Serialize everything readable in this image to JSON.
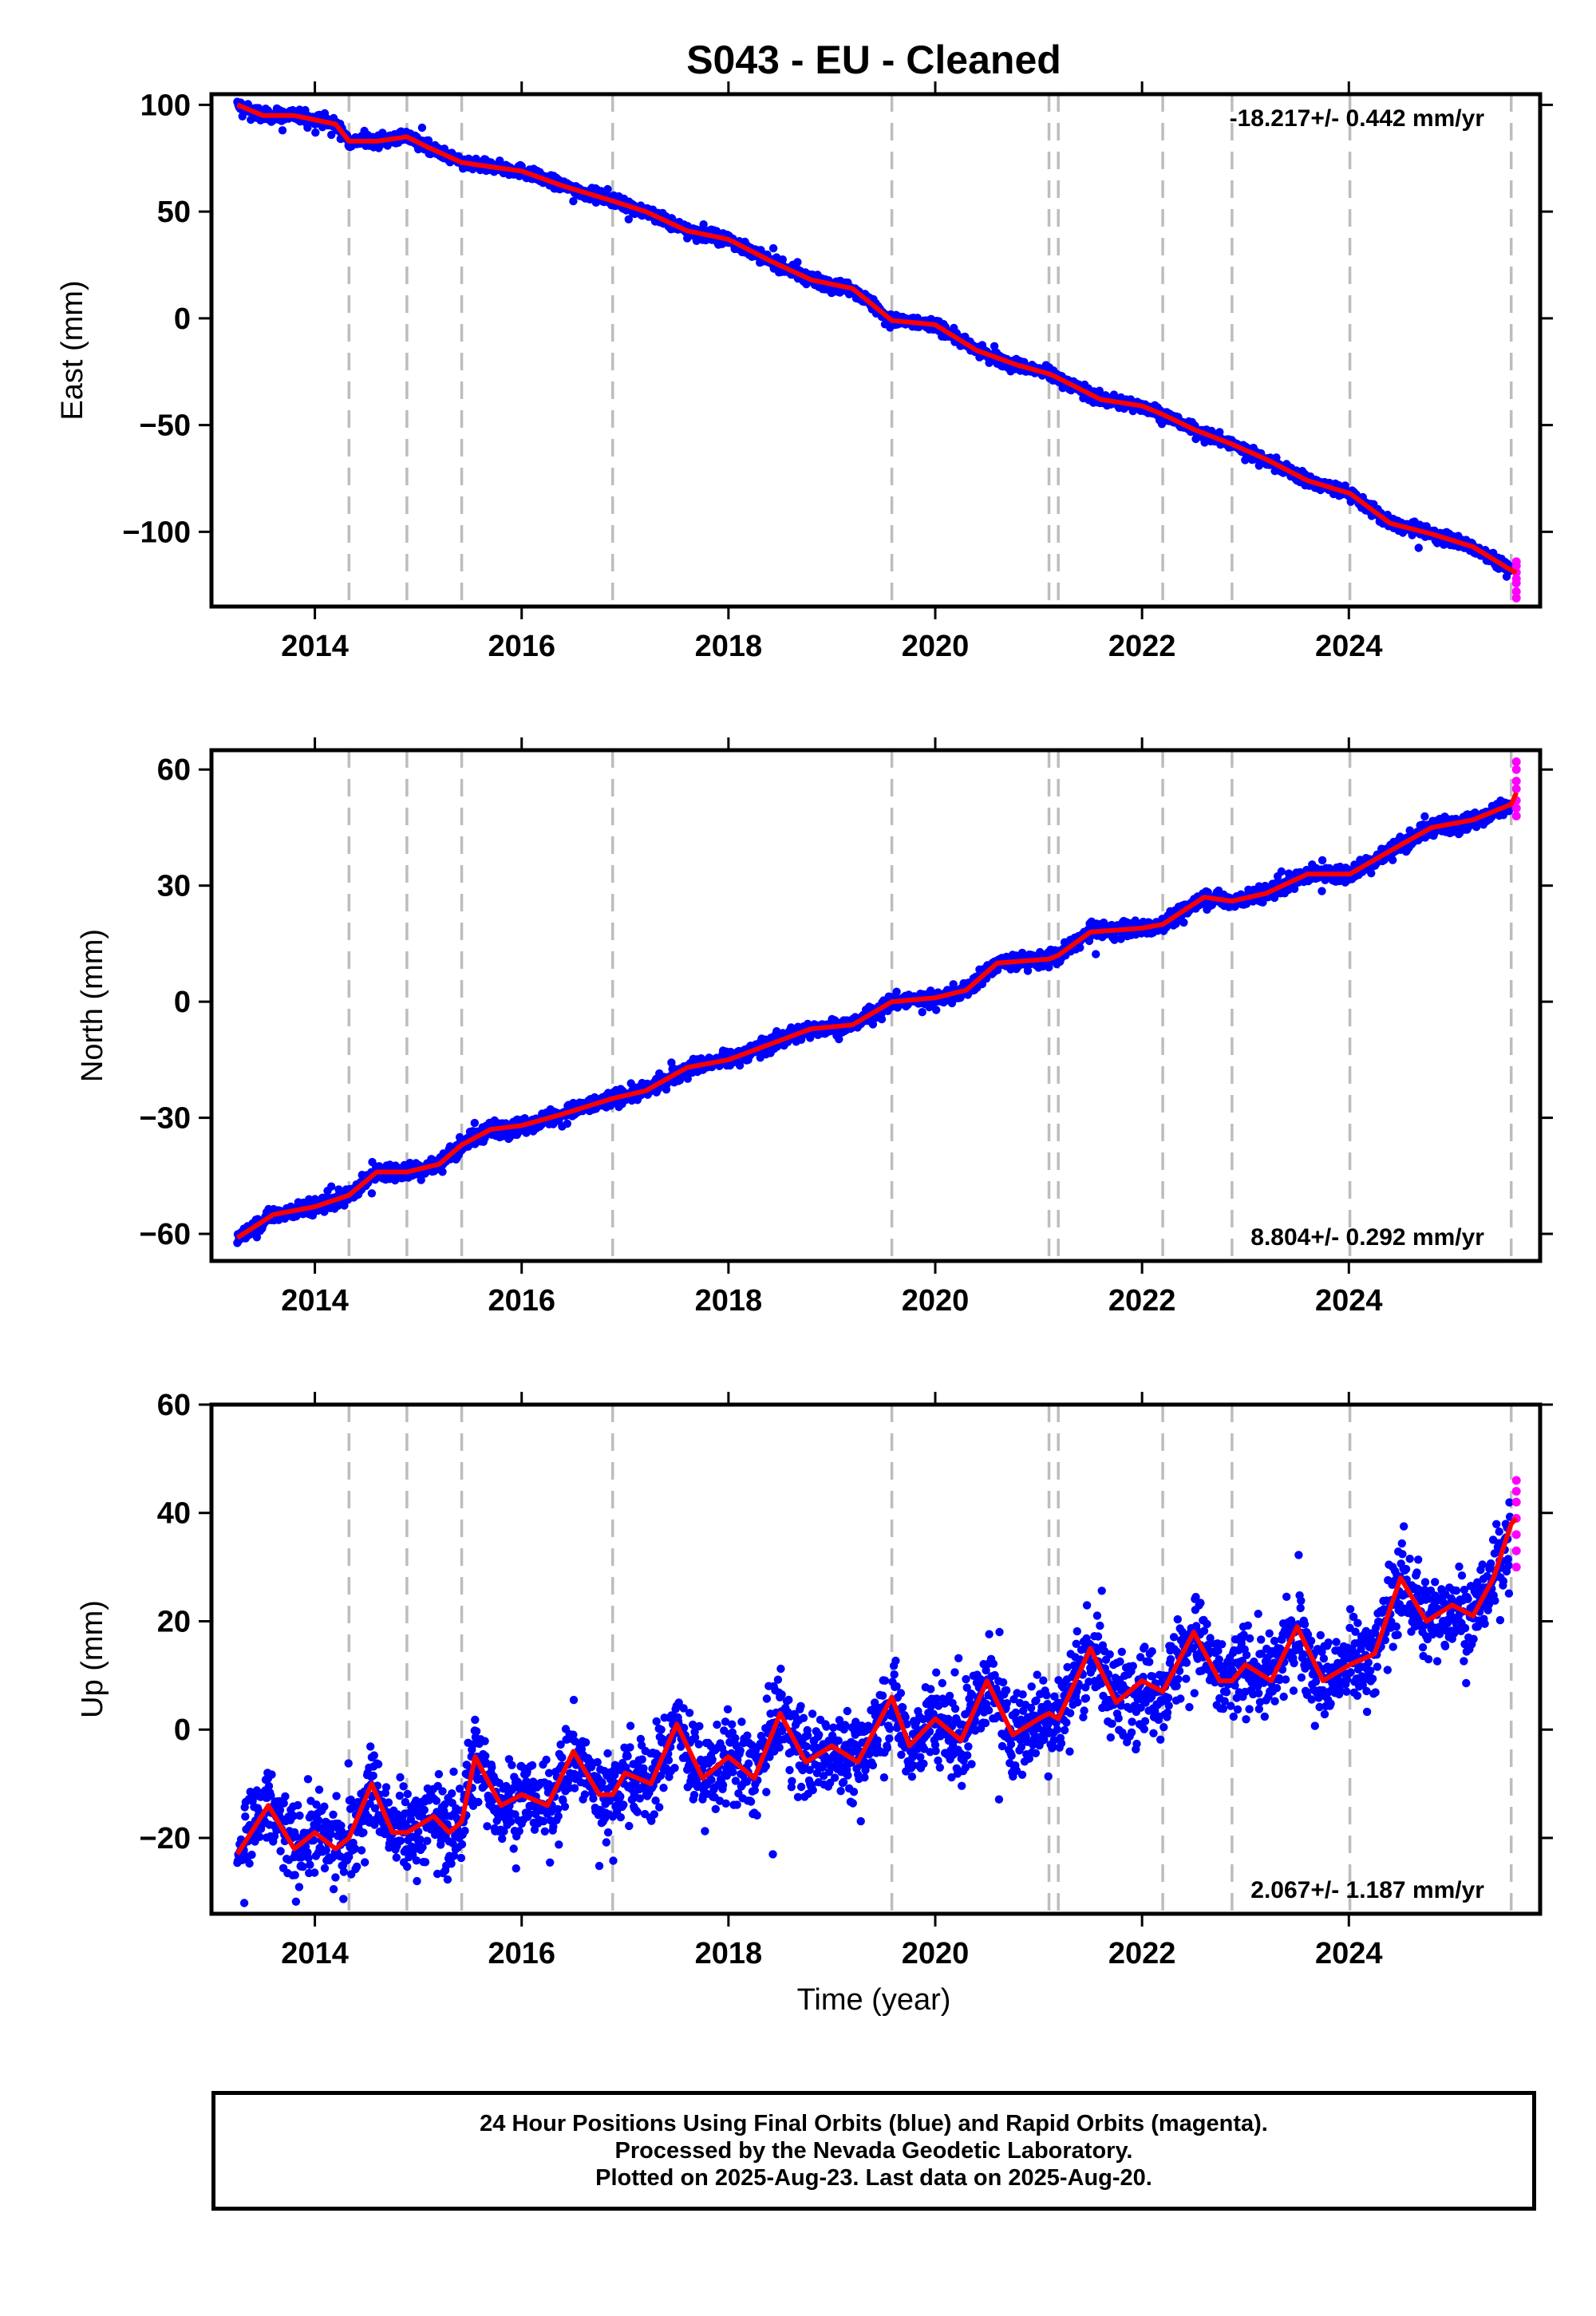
{
  "figure": {
    "title": "S043  - EU - Cleaned",
    "footer": {
      "line1": "24 Hour Positions Using Final Orbits (blue) and Rapid Orbits (magenta).",
      "line2": "Processed by the Nevada Geodetic Laboratory.",
      "line3": "Plotted on 2025-Aug-23. Last data on 2025-Aug-20."
    },
    "colors": {
      "final_points": "#0000ff",
      "rapid_points": "#ff00ff",
      "model_line": "#ff0000",
      "event_lines": "#bdbdbd",
      "axes": "#000000"
    }
  },
  "chart_data": [
    {
      "type": "scatter",
      "panel": "east",
      "ylabel": "East (mm)",
      "xlabel": "",
      "xlim": [
        2013.0,
        2025.85
      ],
      "ylim": [
        -135,
        105
      ],
      "x_ticks": [
        2014,
        2016,
        2018,
        2020,
        2022,
        2024
      ],
      "y_ticks": [
        100,
        50,
        0,
        -50,
        -100
      ],
      "y_tick_labels": [
        "100",
        "50",
        "0",
        "−50",
        "−100"
      ],
      "annotation": "-18.217+/- 0.442 mm/yr",
      "annotation_position": "top-right",
      "event_lines": [
        2014.33,
        2014.89,
        2015.42,
        2016.88,
        2019.58,
        2021.1,
        2021.19,
        2022.2,
        2022.87,
        2024.01,
        2025.57
      ],
      "model": {
        "x": [
          2013.25,
          2013.5,
          2013.8,
          2014.2,
          2014.33,
          2014.6,
          2014.89,
          2015.1,
          2015.42,
          2015.7,
          2016.0,
          2016.4,
          2016.88,
          2017.2,
          2017.6,
          2018.0,
          2018.4,
          2018.8,
          2019.2,
          2019.58,
          2020.0,
          2020.4,
          2020.8,
          2021.1,
          2021.19,
          2021.6,
          2022.0,
          2022.2,
          2022.5,
          2022.87,
          2023.2,
          2023.6,
          2024.01,
          2024.4,
          2024.8,
          2025.2,
          2025.57,
          2025.62
        ],
        "y": [
          100,
          95,
          95,
          91,
          83,
          83,
          85,
          80,
          73,
          71,
          69,
          62,
          55,
          50,
          41,
          37,
          27,
          18,
          14,
          -1,
          -3,
          -15,
          -22,
          -26,
          -28,
          -38,
          -41,
          -45,
          -52,
          -59,
          -66,
          -76,
          -82,
          -96,
          -101,
          -107,
          -118,
          -119
        ]
      },
      "noise_amplitude": 2.5,
      "rapid": {
        "x": 2025.62,
        "y_values": [
          -119,
          -116,
          -114,
          -122,
          -124,
          -128,
          -131
        ]
      }
    },
    {
      "type": "scatter",
      "panel": "north",
      "ylabel": "North (mm)",
      "xlabel": "",
      "xlim": [
        2013.0,
        2025.85
      ],
      "ylim": [
        -67,
        65
      ],
      "x_ticks": [
        2014,
        2016,
        2018,
        2020,
        2022,
        2024
      ],
      "y_ticks": [
        60,
        30,
        0,
        -30,
        -60
      ],
      "y_tick_labels": [
        "60",
        "30",
        "0",
        "−30",
        "−60"
      ],
      "annotation": "8.804+/- 0.292 mm/yr",
      "annotation_position": "bottom-right",
      "event_lines": [
        2014.33,
        2014.89,
        2015.42,
        2016.88,
        2019.58,
        2021.1,
        2021.19,
        2022.2,
        2022.87,
        2024.01,
        2025.57
      ],
      "model": {
        "x": [
          2013.25,
          2013.6,
          2014.0,
          2014.33,
          2014.6,
          2014.89,
          2015.2,
          2015.42,
          2015.7,
          2016.0,
          2016.4,
          2016.88,
          2017.2,
          2017.6,
          2018.0,
          2018.4,
          2018.8,
          2019.2,
          2019.58,
          2020.0,
          2020.3,
          2020.6,
          2021.1,
          2021.19,
          2021.5,
          2022.0,
          2022.2,
          2022.6,
          2022.87,
          2023.2,
          2023.6,
          2024.01,
          2024.4,
          2024.8,
          2025.2,
          2025.57,
          2025.62
        ],
        "y": [
          -61,
          -55,
          -53,
          -50,
          -44,
          -44,
          -42,
          -37,
          -33,
          -32,
          -29,
          -25,
          -23,
          -17,
          -15,
          -11,
          -7,
          -6,
          0,
          1,
          3,
          10,
          11,
          12,
          18,
          19,
          20,
          27,
          26,
          28,
          33,
          33,
          39,
          45,
          47,
          51,
          54
        ]
      },
      "noise_amplitude": 1.8,
      "rapid": {
        "x": 2025.62,
        "y_values": [
          48,
          50,
          52,
          55,
          57,
          60,
          62
        ]
      }
    },
    {
      "type": "scatter",
      "panel": "up",
      "ylabel": "Up (mm)",
      "xlabel": "Time (year)",
      "xlim": [
        2013.0,
        2025.85
      ],
      "ylim": [
        -34,
        60
      ],
      "x_ticks": [
        2014,
        2016,
        2018,
        2020,
        2022,
        2024
      ],
      "y_ticks": [
        60,
        40,
        20,
        0,
        -20
      ],
      "y_tick_labels": [
        "60",
        "40",
        "20",
        "0",
        "−20"
      ],
      "annotation": "2.067+/- 1.187 mm/yr",
      "annotation_position": "bottom-right",
      "event_lines": [
        2014.33,
        2014.89,
        2015.42,
        2016.88,
        2019.58,
        2021.1,
        2021.19,
        2022.2,
        2022.87,
        2024.01,
        2025.57
      ],
      "model": {
        "x": [
          2013.25,
          2013.55,
          2013.8,
          2014.0,
          2014.2,
          2014.33,
          2014.55,
          2014.75,
          2014.89,
          2015.15,
          2015.3,
          2015.42,
          2015.55,
          2015.8,
          2016.0,
          2016.25,
          2016.5,
          2016.75,
          2016.88,
          2017.0,
          2017.25,
          2017.5,
          2017.75,
          2018.0,
          2018.25,
          2018.5,
          2018.75,
          2019.0,
          2019.25,
          2019.58,
          2019.75,
          2020.0,
          2020.25,
          2020.5,
          2020.75,
          2021.0,
          2021.1,
          2021.19,
          2021.5,
          2021.75,
          2022.0,
          2022.2,
          2022.5,
          2022.75,
          2022.87,
          2023.0,
          2023.25,
          2023.5,
          2023.75,
          2024.01,
          2024.25,
          2024.5,
          2024.75,
          2025.0,
          2025.2,
          2025.4,
          2025.57,
          2025.62
        ],
        "y": [
          -23,
          -14,
          -22,
          -19,
          -22,
          -20,
          -10,
          -19,
          -19,
          -16,
          -19,
          -17,
          -5,
          -14,
          -12,
          -14,
          -4,
          -12,
          -12,
          -8,
          -10,
          1,
          -9,
          -5,
          -9,
          3,
          -6,
          -3,
          -6,
          6,
          -3,
          2,
          -2,
          9,
          -1,
          2,
          3,
          2,
          15,
          5,
          9,
          7,
          18,
          9,
          9,
          12,
          9,
          19,
          9,
          12,
          14,
          28,
          20,
          23,
          21,
          28,
          38,
          39
        ]
      },
      "noise_amplitude": 7,
      "rapid": {
        "x": 2025.62,
        "y_values": [
          30,
          33,
          36,
          39,
          42,
          44,
          46
        ]
      }
    }
  ]
}
